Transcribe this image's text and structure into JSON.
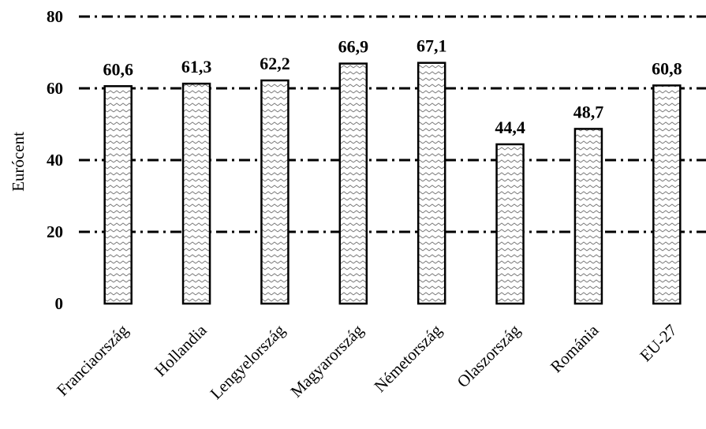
{
  "chart_data": {
    "type": "bar",
    "categories": [
      "Franciaország",
      "Hollandia",
      "Lengyelország",
      "Magyarország",
      "Németország",
      "Olaszország",
      "Románia",
      "EU-27"
    ],
    "values": [
      60.6,
      61.3,
      62.2,
      66.9,
      67.1,
      44.4,
      48.7,
      60.8
    ],
    "data_labels": [
      "60,6",
      "61,3",
      "62,2",
      "66,9",
      "67,1",
      "44,4",
      "48,7",
      "60,8"
    ],
    "title": "",
    "xlabel": "",
    "ylabel": "Eurócent",
    "ylim": [
      0,
      80
    ],
    "yticks": [
      0,
      20,
      40,
      60,
      80
    ],
    "grid": true,
    "legend": "none",
    "bar_fill": "hatched"
  }
}
